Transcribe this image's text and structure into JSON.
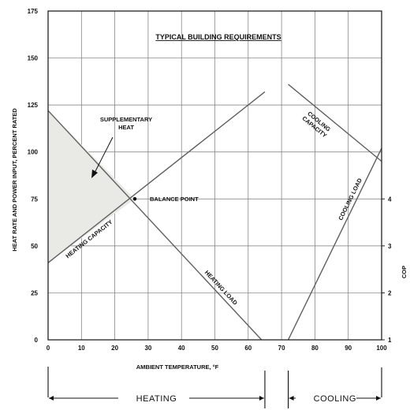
{
  "chart_data": {
    "type": "line",
    "title": "TYPICAL BUILDING REQUIREMENTS",
    "xlabel": "AMBIENT TEMPERATURE, °F",
    "ylabel": "HEAT RATE AND POWER INPUT, PERCENT RATED",
    "xlim": [
      0,
      100
    ],
    "ylim": [
      0,
      175
    ],
    "x_ticks": [
      "0",
      "10",
      "20",
      "30",
      "40",
      "50",
      "60",
      "70",
      "80",
      "90",
      "100"
    ],
    "y_ticks": [
      "0",
      "25",
      "50",
      "75",
      "100",
      "125",
      "150",
      "175"
    ],
    "y2_ticks": [
      "1",
      "2",
      "3",
      "4"
    ],
    "y2label": "COP",
    "grid": true,
    "series": [
      {
        "name": "HEATING CAPACITY",
        "x": [
          0,
          65
        ],
        "y": [
          41,
          132
        ]
      },
      {
        "name": "HEATING LOAD",
        "x": [
          0,
          64
        ],
        "y": [
          122,
          0
        ]
      },
      {
        "name": "COOLING LOAD",
        "x": [
          72,
          100
        ],
        "y": [
          0,
          102
        ]
      },
      {
        "name": "COOLING CAPACITY",
        "x": [
          72,
          100
        ],
        "y": [
          136,
          95
        ]
      }
    ],
    "annotations": {
      "supplementary_heat": [
        "SUPPLEMENTARY",
        "HEAT"
      ],
      "balance_point": "BALANCE POINT",
      "balance_point_xy": [
        26,
        75
      ],
      "cooling_capacity": [
        "COOLING",
        "CAPACITY"
      ]
    },
    "regions": {
      "heating": "HEATING",
      "cooling": "COOLING"
    }
  }
}
